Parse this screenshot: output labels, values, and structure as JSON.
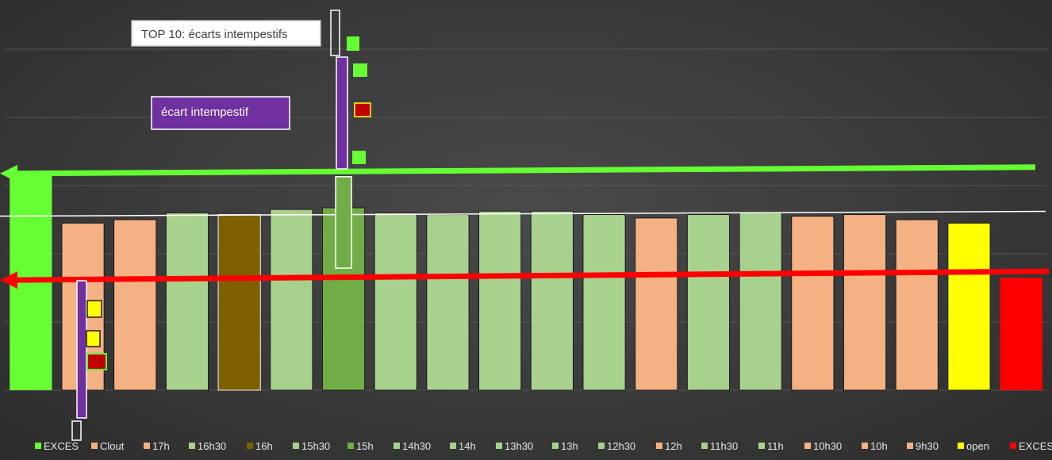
{
  "chart_data": {
    "type": "bar",
    "title": "",
    "xlabel": "",
    "ylabel": "",
    "grid": true,
    "legend_position": "bottom",
    "ylim": [
      0,
      100
    ],
    "categories": [
      "EXCES",
      "Clout",
      "17h",
      "16h30",
      "16h",
      "15h30",
      "15h",
      "14h30",
      "14h",
      "13h30",
      "13h",
      "12h30",
      "12h",
      "11h30",
      "11h",
      "10h30",
      "10h",
      "9h30",
      "open",
      "EXCES"
    ],
    "values": [
      63,
      49,
      50,
      52,
      51.5,
      53,
      53.5,
      52,
      51.5,
      52.5,
      52.5,
      51.5,
      50.5,
      51.5,
      52,
      51,
      51.5,
      50,
      49,
      33
    ],
    "colors": [
      "#66ff33",
      "#f4b183",
      "#f4b183",
      "#a9d18e",
      "#7f6000",
      "#a9d18e",
      "#70ad47",
      "#a9d18e",
      "#a9d18e",
      "#a9d18e",
      "#a9d18e",
      "#a9d18e",
      "#f4b183",
      "#a9d18e",
      "#a9d18e",
      "#f4b183",
      "#f4b183",
      "#f4b183",
      "#ffff00",
      "#ff0000"
    ],
    "white_line_value": 51.5,
    "green_arrow_value": 64,
    "red_arrow_value": 33
  },
  "annotations": {
    "top10_label": "TOP 10: écarts intempestifs",
    "ecart_label": "écart intempestif",
    "purple": "#7030a0",
    "dark_red": "#c00000"
  }
}
